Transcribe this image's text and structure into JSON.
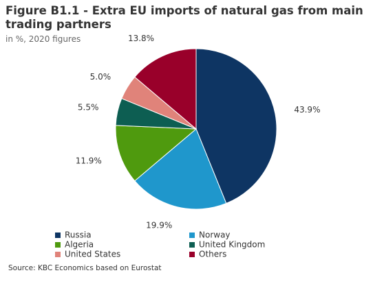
{
  "chart_data": {
    "type": "pie",
    "title": "Figure B1.1 - Extra EU imports of natural gas from main trading partners",
    "subtitle": "in %, 2020 figures",
    "source": "Source: KBC Economics based on Eurostat",
    "categories": [
      "Russia",
      "Norway",
      "Algeria",
      "United Kingdom",
      "United States",
      "Others"
    ],
    "values": [
      43.9,
      19.9,
      11.9,
      5.5,
      5.0,
      13.8
    ],
    "value_labels": [
      "43.9%",
      "19.9%",
      "11.9%",
      "5.5%",
      "5.0%",
      "13.8%"
    ],
    "colors": [
      "#0e3563",
      "#1f97cc",
      "#4f9a0e",
      "#0d5e52",
      "#e0837a",
      "#99002a"
    ]
  }
}
